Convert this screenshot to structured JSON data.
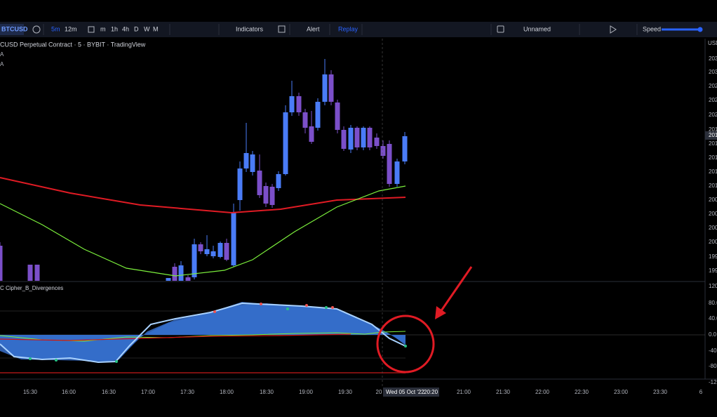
{
  "toolbar": {
    "symbol": "BTCUSD",
    "intervals": [
      "5m",
      "12m",
      "m",
      "1h",
      "4h",
      "D",
      "W",
      "M"
    ],
    "indicators": "Indicators",
    "alert": "Alert",
    "replay": "Replay",
    "layout": "Unnamed",
    "speed": "Speed"
  },
  "legend": {
    "title": "CUSD Perpetual Contract · 5 · BYBIT · TradingView",
    "rows": [
      "A",
      "A"
    ]
  },
  "price_axis": {
    "currency": "USD",
    "labels": [
      "203",
      "203",
      "202",
      "202",
      "202",
      "201",
      "201",
      "201",
      "201",
      "201",
      "201",
      "200",
      "200",
      "200",
      "200",
      "199",
      "199"
    ]
  },
  "indicator": {
    "name": "C Cipher_B_Divergences",
    "axis": [
      "120.0",
      "80.0",
      "40.0",
      "0.0",
      "-40.0",
      "-80.0",
      "-12"
    ]
  },
  "time_axis": {
    "labels": [
      "15:30",
      "16:00",
      "16:30",
      "17:00",
      "17:30",
      "18:00",
      "18:30",
      "19:00",
      "19:30",
      "20",
      "21:00",
      "21:30",
      "22:00",
      "22:30",
      "23:00",
      "23:30",
      "6"
    ],
    "crosshair": {
      "date": "Wed 05 Oct '22",
      "time": "20:20"
    }
  }
}
